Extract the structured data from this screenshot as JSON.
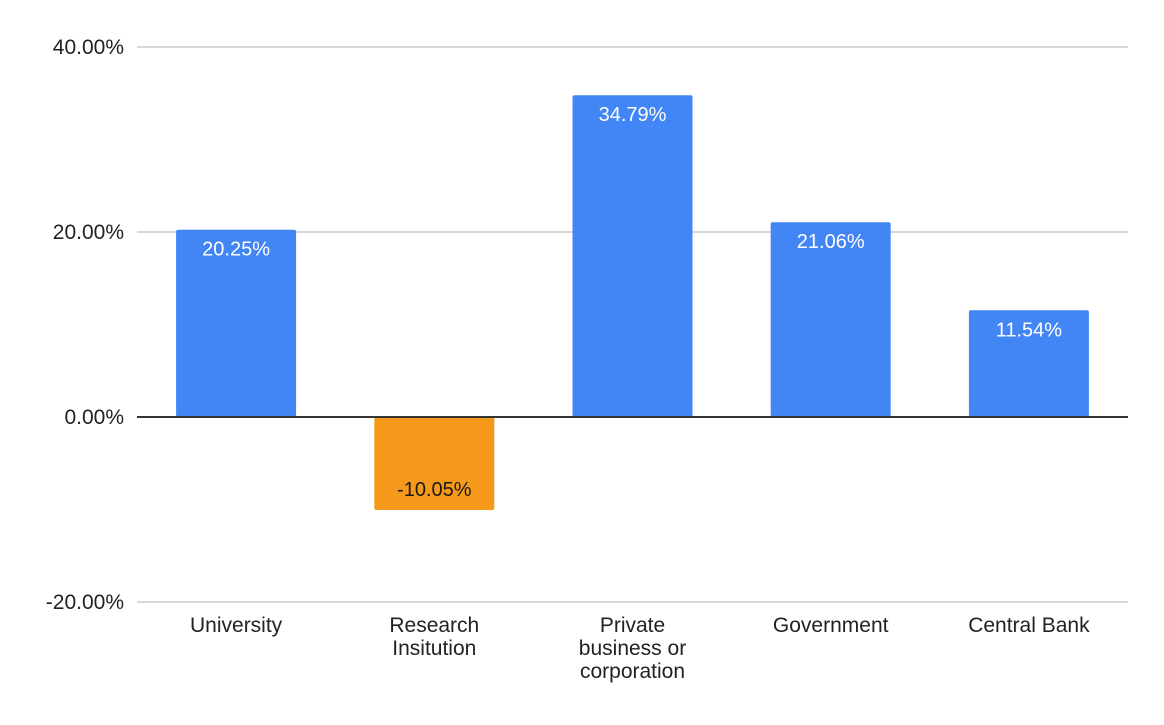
{
  "chart_data": {
    "type": "bar",
    "categories": [
      "University",
      "Research Insitution",
      "Private business or corporation",
      "Government",
      "Central Bank"
    ],
    "category_lines": [
      [
        "University"
      ],
      [
        "Research",
        "Insitution"
      ],
      [
        "Private",
        "business or",
        "corporation"
      ],
      [
        "Government"
      ],
      [
        "Central Bank"
      ]
    ],
    "values": [
      20.25,
      -10.05,
      34.79,
      21.06,
      11.54
    ],
    "data_labels": [
      "20.25%",
      "-10.05%",
      "34.79%",
      "21.06%",
      "11.54%"
    ],
    "y_ticks": [
      40,
      20,
      0,
      -20
    ],
    "y_tick_labels": [
      "40.00%",
      "20.00%",
      "0.00%",
      "-20.00%"
    ],
    "ylim": [
      -20,
      40
    ],
    "grid": true,
    "title": "",
    "xlabel": "",
    "ylabel": "",
    "colors": {
      "positive": "#4285f4",
      "negative": "#f4991a",
      "positive_label": "#ffffff",
      "negative_label": "#1a1a1a",
      "grid": "#cccccc",
      "zero_axis": "#333333"
    }
  }
}
